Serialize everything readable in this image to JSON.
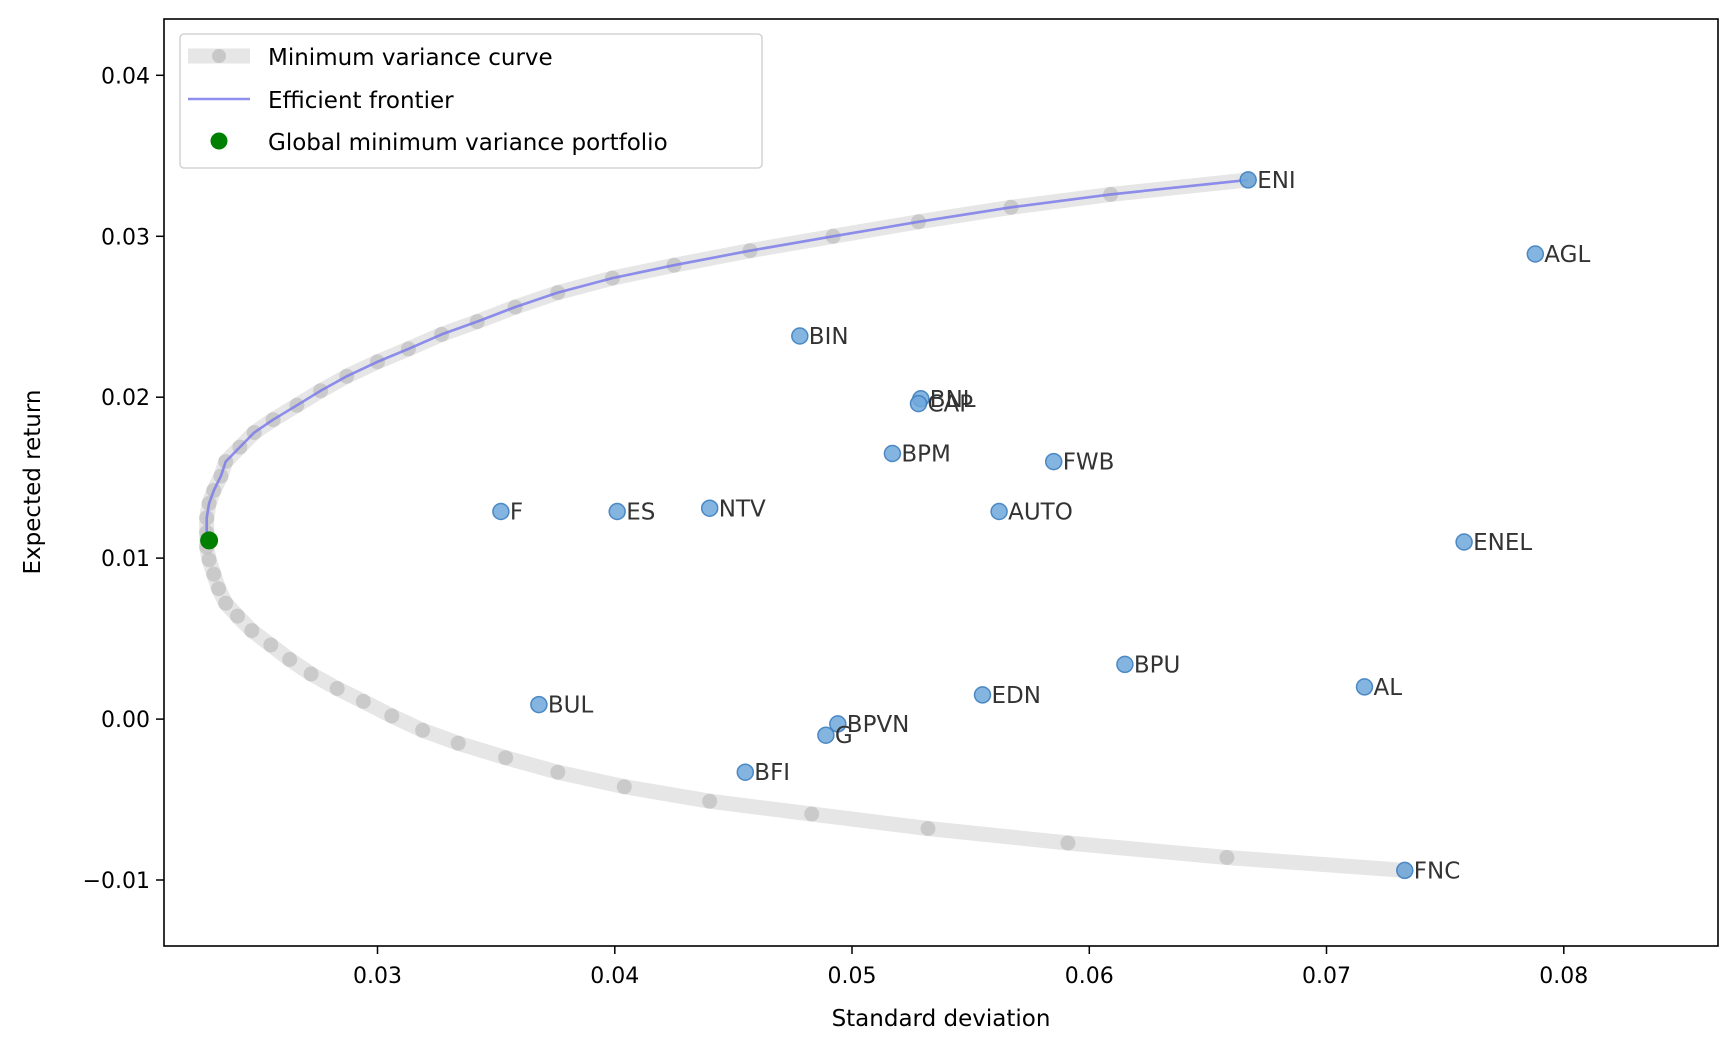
{
  "chart_data": {
    "type": "scatter",
    "title": "",
    "xlabel": "Standard deviation",
    "ylabel": "Expected return",
    "xlim": [
      0.021,
      0.0865
    ],
    "ylim": [
      -0.0141,
      0.0435
    ],
    "x_ticks": [
      0.03,
      0.04,
      0.05,
      0.06,
      0.07,
      0.08
    ],
    "x_tick_labels": [
      "0.03",
      "0.04",
      "0.05",
      "0.06",
      "0.07",
      "0.08"
    ],
    "y_ticks": [
      -0.01,
      0.0,
      0.01,
      0.02,
      0.03,
      0.04
    ],
    "y_tick_labels": [
      "−0.01",
      "0.00",
      "0.01",
      "0.02",
      "0.03",
      "0.04"
    ],
    "grid": false,
    "legend_position": "top-left",
    "legend": [
      {
        "label": "Minimum variance curve",
        "key": "curve"
      },
      {
        "label": "Efficient frontier",
        "key": "frontier"
      },
      {
        "label": "Global minimum variance portfolio",
        "key": "gmv"
      }
    ],
    "colors": {
      "curve": "#c8c8c8",
      "curve_point": "#bdbdbd",
      "frontier": "#7b7bea",
      "asset": "#6fa8dc",
      "asset_edge": "#3f7fbf",
      "gmv": "#008000"
    },
    "global_minimum_variance": {
      "x": 0.0229,
      "y": 0.0111
    },
    "assets": [
      {
        "name": "ENI",
        "x": 0.0667,
        "y": 0.0335
      },
      {
        "name": "AGL",
        "x": 0.0788,
        "y": 0.0289
      },
      {
        "name": "BIN",
        "x": 0.0478,
        "y": 0.0238
      },
      {
        "name": "BNL",
        "x": 0.0529,
        "y": 0.0199
      },
      {
        "name": "CAP",
        "x": 0.0528,
        "y": 0.0196
      },
      {
        "name": "BPM",
        "x": 0.0517,
        "y": 0.0165
      },
      {
        "name": "FWB",
        "x": 0.0585,
        "y": 0.016
      },
      {
        "name": "F",
        "x": 0.0352,
        "y": 0.0129
      },
      {
        "name": "ES",
        "x": 0.0401,
        "y": 0.0129
      },
      {
        "name": "NTV",
        "x": 0.044,
        "y": 0.0131
      },
      {
        "name": "AUTO",
        "x": 0.0562,
        "y": 0.0129
      },
      {
        "name": "ENEL",
        "x": 0.0758,
        "y": 0.011
      },
      {
        "name": "BPU",
        "x": 0.0615,
        "y": 0.0034
      },
      {
        "name": "AL",
        "x": 0.0716,
        "y": 0.002
      },
      {
        "name": "EDN",
        "x": 0.0555,
        "y": 0.0015
      },
      {
        "name": "BUL",
        "x": 0.0368,
        "y": 0.0009
      },
      {
        "name": "BPVN",
        "x": 0.0494,
        "y": -0.0003
      },
      {
        "name": "G",
        "x": 0.0489,
        "y": -0.001
      },
      {
        "name": "BFI",
        "x": 0.0455,
        "y": -0.0033
      },
      {
        "name": "FNC",
        "x": 0.0733,
        "y": -0.0094
      }
    ],
    "minimum_variance_curve": [
      {
        "x": 0.0667,
        "y": 0.0335
      },
      {
        "x": 0.0609,
        "y": 0.0326
      },
      {
        "x": 0.0567,
        "y": 0.0318
      },
      {
        "x": 0.0528,
        "y": 0.0309
      },
      {
        "x": 0.0492,
        "y": 0.03
      },
      {
        "x": 0.0457,
        "y": 0.0291
      },
      {
        "x": 0.0425,
        "y": 0.0282
      },
      {
        "x": 0.0399,
        "y": 0.0274
      },
      {
        "x": 0.0376,
        "y": 0.0265
      },
      {
        "x": 0.0358,
        "y": 0.0256
      },
      {
        "x": 0.0342,
        "y": 0.0247
      },
      {
        "x": 0.0327,
        "y": 0.0239
      },
      {
        "x": 0.0313,
        "y": 0.023
      },
      {
        "x": 0.03,
        "y": 0.0222
      },
      {
        "x": 0.0287,
        "y": 0.0213
      },
      {
        "x": 0.0276,
        "y": 0.0204
      },
      {
        "x": 0.0266,
        "y": 0.0195
      },
      {
        "x": 0.0256,
        "y": 0.0186
      },
      {
        "x": 0.0248,
        "y": 0.0178
      },
      {
        "x": 0.0242,
        "y": 0.0169
      },
      {
        "x": 0.0236,
        "y": 0.016
      },
      {
        "x": 0.0234,
        "y": 0.0151
      },
      {
        "x": 0.0231,
        "y": 0.0142
      },
      {
        "x": 0.0229,
        "y": 0.0134
      },
      {
        "x": 0.0228,
        "y": 0.0125
      },
      {
        "x": 0.0228,
        "y": 0.0116
      },
      {
        "x": 0.0228,
        "y": 0.0107
      },
      {
        "x": 0.0229,
        "y": 0.0099
      },
      {
        "x": 0.0231,
        "y": 0.009
      },
      {
        "x": 0.0233,
        "y": 0.0081
      },
      {
        "x": 0.0236,
        "y": 0.0072
      },
      {
        "x": 0.0241,
        "y": 0.0064
      },
      {
        "x": 0.0247,
        "y": 0.0055
      },
      {
        "x": 0.0255,
        "y": 0.0046
      },
      {
        "x": 0.0263,
        "y": 0.0037
      },
      {
        "x": 0.0272,
        "y": 0.0028
      },
      {
        "x": 0.0283,
        "y": 0.0019
      },
      {
        "x": 0.0294,
        "y": 0.0011
      },
      {
        "x": 0.0306,
        "y": 0.0002
      },
      {
        "x": 0.0319,
        "y": -0.0007
      },
      {
        "x": 0.0334,
        "y": -0.0015
      },
      {
        "x": 0.0354,
        "y": -0.0024
      },
      {
        "x": 0.0376,
        "y": -0.0033
      },
      {
        "x": 0.0404,
        "y": -0.0042
      },
      {
        "x": 0.044,
        "y": -0.0051
      },
      {
        "x": 0.0483,
        "y": -0.0059
      },
      {
        "x": 0.0532,
        "y": -0.0068
      },
      {
        "x": 0.0591,
        "y": -0.0077
      },
      {
        "x": 0.0658,
        "y": -0.0086
      },
      {
        "x": 0.0733,
        "y": -0.0094
      }
    ]
  }
}
